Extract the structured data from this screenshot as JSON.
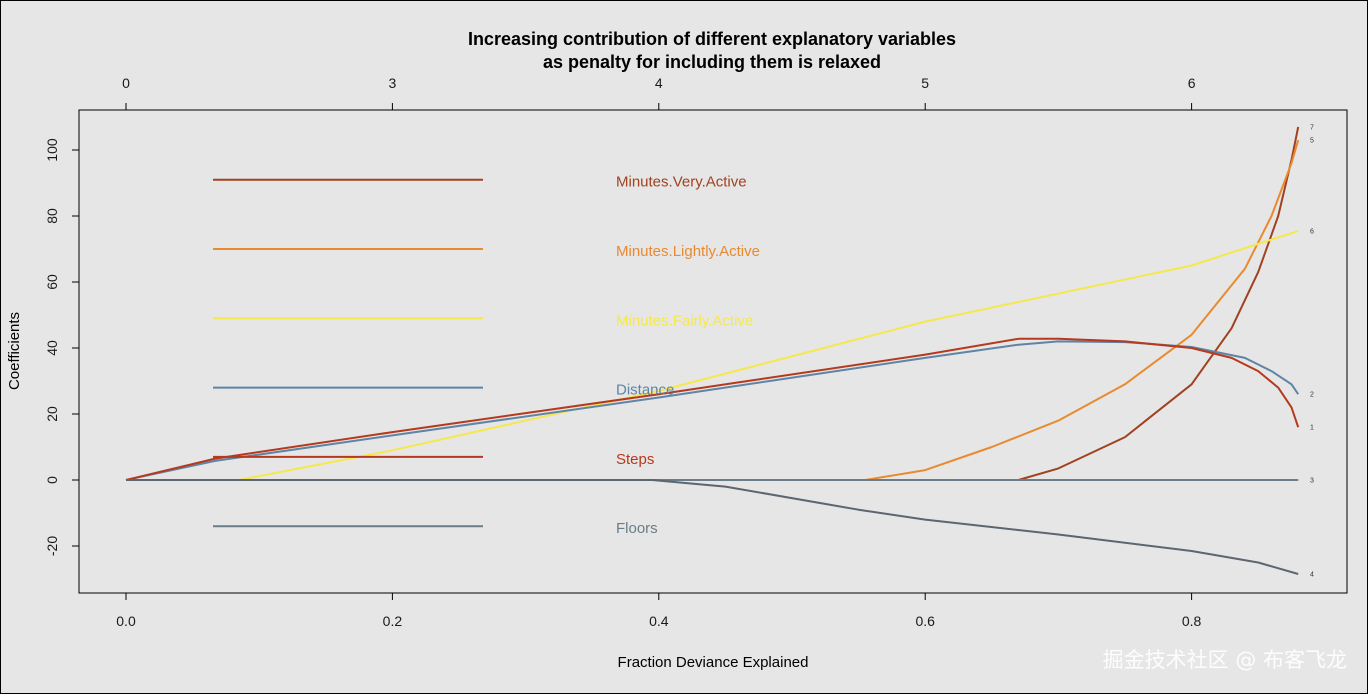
{
  "chart_data": {
    "type": "line",
    "title_lines": [
      "Increasing contribution of different explanatory variables",
      "as penalty for including them is relaxed"
    ],
    "xlabel": "Fraction Deviance Explained",
    "ylabel": "Coefficients",
    "xlim": [
      0.0,
      0.9
    ],
    "ylim": [
      -35,
      110
    ],
    "x_ticks": [
      "0.0",
      "0.2",
      "0.4",
      "0.6",
      "0.8"
    ],
    "y_ticks": [
      "-20",
      "0",
      "20",
      "40",
      "60",
      "80",
      "100"
    ],
    "top_axis_ticks": [
      {
        "x": 0.0,
        "label": "0"
      },
      {
        "x": 0.2,
        "label": "3"
      },
      {
        "x": 0.4,
        "label": "4"
      },
      {
        "x": 0.6,
        "label": "5"
      },
      {
        "x": 0.8,
        "label": "6"
      }
    ],
    "series": [
      {
        "name": "Minutes.Very.Active",
        "color": "#a0421f",
        "end_label": "7",
        "points": [
          [
            0,
            0
          ],
          [
            0.67,
            0
          ],
          [
            0.7,
            3.5
          ],
          [
            0.75,
            13
          ],
          [
            0.8,
            29
          ],
          [
            0.83,
            46
          ],
          [
            0.85,
            63
          ],
          [
            0.865,
            80
          ],
          [
            0.875,
            97
          ],
          [
            0.88,
            107
          ]
        ]
      },
      {
        "name": "Minutes.Lightly.Active",
        "color": "#e88a30",
        "end_label": "5",
        "points": [
          [
            0,
            0
          ],
          [
            0.555,
            0
          ],
          [
            0.6,
            3
          ],
          [
            0.65,
            10
          ],
          [
            0.7,
            18
          ],
          [
            0.75,
            29
          ],
          [
            0.8,
            44
          ],
          [
            0.84,
            64
          ],
          [
            0.86,
            80
          ],
          [
            0.875,
            96
          ],
          [
            0.88,
            103
          ]
        ]
      },
      {
        "name": "Minutes.Fairly.Active",
        "color": "#f5e84c",
        "end_label": "6",
        "points": [
          [
            0,
            0
          ],
          [
            0.085,
            0
          ],
          [
            0.2,
            9
          ],
          [
            0.4,
            27
          ],
          [
            0.6,
            48
          ],
          [
            0.8,
            65
          ],
          [
            0.88,
            75.5
          ]
        ]
      },
      {
        "name": "Distance",
        "color": "#5e84a6",
        "end_label": "2",
        "points": [
          [
            0,
            0
          ],
          [
            0.067,
            5.8
          ],
          [
            0.2,
            13.5
          ],
          [
            0.4,
            25
          ],
          [
            0.6,
            37
          ],
          [
            0.67,
            41
          ],
          [
            0.7,
            42
          ],
          [
            0.75,
            41.8
          ],
          [
            0.8,
            40.3
          ],
          [
            0.84,
            37
          ],
          [
            0.86,
            33
          ],
          [
            0.875,
            29
          ],
          [
            0.88,
            26
          ]
        ]
      },
      {
        "name": "Steps",
        "color": "#b5391e",
        "end_label": "1",
        "points": [
          [
            0,
            0
          ],
          [
            0.067,
            6.5
          ],
          [
            0.2,
            14.5
          ],
          [
            0.4,
            26
          ],
          [
            0.6,
            38
          ],
          [
            0.67,
            42.8
          ],
          [
            0.7,
            42.8
          ],
          [
            0.75,
            42
          ],
          [
            0.8,
            40
          ],
          [
            0.83,
            37
          ],
          [
            0.85,
            33
          ],
          [
            0.865,
            28
          ],
          [
            0.875,
            22
          ],
          [
            0.88,
            16
          ]
        ]
      },
      {
        "name": "Floors",
        "color": "#6a7d88",
        "end_label": "3",
        "points": [
          [
            0,
            0
          ],
          [
            0.88,
            0
          ]
        ]
      },
      {
        "name": "",
        "color": "#5c6670",
        "end_label": "4",
        "points": [
          [
            0,
            0
          ],
          [
            0.395,
            0
          ],
          [
            0.45,
            -2
          ],
          [
            0.55,
            -9
          ],
          [
            0.6,
            -12
          ],
          [
            0.7,
            -16.5
          ],
          [
            0.8,
            -21.5
          ],
          [
            0.85,
            -25
          ],
          [
            0.88,
            -28.5
          ]
        ]
      }
    ],
    "legend": [
      {
        "label": "Minutes.Very.Active",
        "color": "#a0421f",
        "y": 91
      },
      {
        "label": "Minutes.Lightly.Active",
        "color": "#e88a30",
        "y": 70
      },
      {
        "label": "Minutes.Fairly.Active",
        "color": "#f5e84c",
        "y": 49
      },
      {
        "label": "Distance",
        "color": "#5e84a6",
        "y": 28
      },
      {
        "label": "Steps",
        "color": "#b5391e",
        "y": 7
      },
      {
        "label": "Floors",
        "color": "#6a7d88",
        "y": -14
      }
    ]
  },
  "watermark": "掘金技术社区 @ 布客飞龙"
}
